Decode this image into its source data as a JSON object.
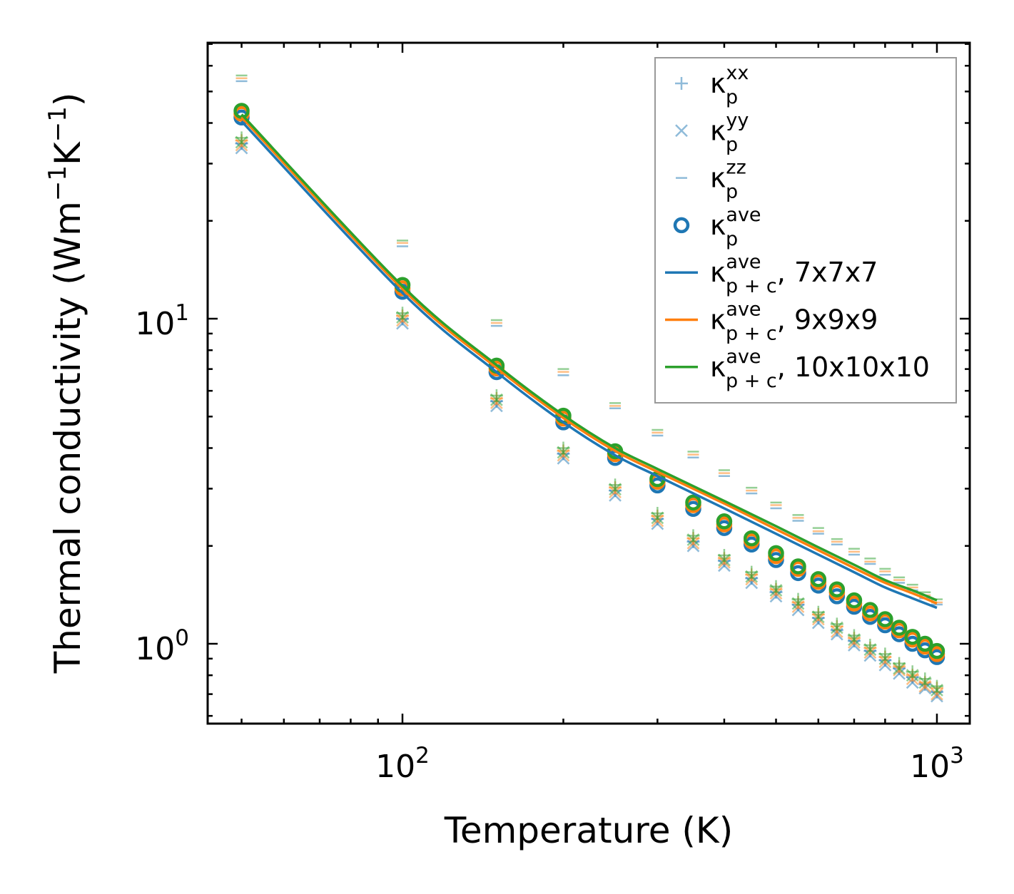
{
  "chart_data": {
    "type": "scatter",
    "title": "",
    "xlabel": "Temperature (K)",
    "ylabel_parts": {
      "pre": "Thermal conductivity (Wm",
      "sup1": "−1",
      "mid": "K",
      "sup2": "−1",
      "post": ")"
    },
    "xscale": "log",
    "yscale": "log",
    "xlim": [
      43.2,
      1152
    ],
    "ylim": [
      0.568,
      70.6
    ],
    "xticks": [
      {
        "value": 100,
        "base": "10",
        "exp": "2"
      },
      {
        "value": 1000,
        "base": "10",
        "exp": "3"
      }
    ],
    "yticks": [
      {
        "value": 1,
        "base": "10",
        "exp": "0"
      },
      {
        "value": 10,
        "base": "10",
        "exp": "1"
      }
    ],
    "legend_position": "top-right",
    "colors": {
      "7x7x7": "#1f77b4",
      "9x9x9": "#ff7f0e",
      "10x10x10": "#2ca02c"
    },
    "legend": [
      {
        "marker": "plus",
        "color": "#1f77b4",
        "sym": "κ",
        "sup": "xx",
        "sub": "p",
        "suffix": ""
      },
      {
        "marker": "x",
        "color": "#1f77b4",
        "sym": "κ",
        "sup": "yy",
        "sub": "p",
        "suffix": ""
      },
      {
        "marker": "hline",
        "color": "#1f77b4",
        "sym": "κ",
        "sup": "zz",
        "sub": "p",
        "suffix": ""
      },
      {
        "marker": "circle",
        "color": "#1f77b4",
        "sym": "κ",
        "sup": "ave",
        "sub": "p",
        "suffix": ""
      },
      {
        "marker": "line",
        "color": "#1f77b4",
        "sym": "κ",
        "sup": "ave",
        "sub": "p + c",
        "suffix": ", 7x7x7"
      },
      {
        "marker": "line",
        "color": "#ff7f0e",
        "sym": "κ",
        "sup": "ave",
        "sub": "p + c",
        "suffix": ", 9x9x9"
      },
      {
        "marker": "line",
        "color": "#2ca02c",
        "sym": "κ",
        "sup": "ave",
        "sub": "p + c",
        "suffix": ", 10x10x10"
      }
    ],
    "T": [
      50,
      100,
      150,
      200,
      250,
      300,
      350,
      400,
      450,
      500,
      550,
      600,
      650,
      700,
      750,
      800,
      850,
      900,
      950,
      1000
    ],
    "grids": [
      {
        "name": "7x7x7",
        "color": "#1f77b4",
        "xx": [
          34.6,
          9.98,
          5.57,
          3.84,
          2.96,
          2.42,
          2.06,
          1.8,
          1.59,
          1.44,
          1.32,
          1.2,
          1.1,
          1.02,
          0.95,
          0.89,
          0.84,
          0.79,
          0.75,
          0.71
        ],
        "yy": [
          33.5,
          9.67,
          5.39,
          3.72,
          2.86,
          2.34,
          2.0,
          1.74,
          1.54,
          1.4,
          1.27,
          1.16,
          1.07,
          0.99,
          0.92,
          0.86,
          0.81,
          0.76,
          0.73,
          0.69
        ],
        "zz": [
          53.8,
          16.7,
          9.5,
          6.7,
          5.3,
          4.37,
          3.74,
          3.28,
          2.9,
          2.61,
          2.39,
          2.18,
          2.02,
          1.88,
          1.76,
          1.63,
          1.54,
          1.46,
          1.38,
          1.32
        ],
        "ave": [
          41.6,
          12.1,
          6.85,
          4.8,
          3.73,
          3.07,
          2.6,
          2.27,
          2.02,
          1.81,
          1.65,
          1.51,
          1.4,
          1.3,
          1.21,
          1.14,
          1.07,
          1.0,
          0.955,
          0.91
        ],
        "line_T": [
          50,
          100,
          150,
          200,
          250,
          300,
          400,
          500,
          600,
          700,
          800,
          900,
          1000
        ],
        "line": [
          40.5,
          12.0,
          6.85,
          4.8,
          3.8,
          3.28,
          2.61,
          2.18,
          1.88,
          1.66,
          1.49,
          1.38,
          1.29
        ]
      },
      {
        "name": "9x9x9",
        "color": "#ff7f0e",
        "xx": [
          35.3,
          10.2,
          5.68,
          3.92,
          3.02,
          2.47,
          2.11,
          1.83,
          1.63,
          1.47,
          1.34,
          1.23,
          1.13,
          1.04,
          0.97,
          0.91,
          0.85,
          0.8,
          0.76,
          0.73
        ],
        "yy": [
          34.2,
          9.88,
          5.51,
          3.8,
          2.93,
          2.39,
          2.04,
          1.78,
          1.58,
          1.43,
          1.3,
          1.19,
          1.09,
          1.01,
          0.94,
          0.88,
          0.83,
          0.78,
          0.74,
          0.7
        ],
        "zz": [
          54.9,
          17.1,
          9.7,
          6.86,
          5.39,
          4.46,
          3.82,
          3.35,
          2.96,
          2.67,
          2.44,
          2.22,
          2.06,
          1.92,
          1.79,
          1.67,
          1.57,
          1.49,
          1.41,
          1.34
        ],
        "ave": [
          42.7,
          12.4,
          7.03,
          4.93,
          3.83,
          3.15,
          2.67,
          2.33,
          2.07,
          1.86,
          1.7,
          1.55,
          1.44,
          1.33,
          1.24,
          1.17,
          1.1,
          1.03,
          0.98,
          0.93
        ],
        "line_T": [
          50,
          100,
          150,
          200,
          250,
          300,
          400,
          500,
          600,
          700,
          800,
          900,
          1000
        ],
        "line": [
          41.7,
          12.35,
          7.06,
          4.95,
          3.92,
          3.38,
          2.7,
          2.25,
          1.94,
          1.71,
          1.54,
          1.43,
          1.33
        ]
      },
      {
        "name": "10x10x10",
        "color": "#2ca02c",
        "xx": [
          36,
          10.4,
          5.8,
          4.0,
          3.08,
          2.52,
          2.15,
          1.87,
          1.66,
          1.5,
          1.37,
          1.25,
          1.15,
          1.06,
          0.99,
          0.93,
          0.87,
          0.82,
          0.78,
          0.74
        ],
        "yy": [
          34.9,
          10.1,
          5.63,
          3.88,
          2.99,
          2.44,
          2.09,
          1.81,
          1.61,
          1.46,
          1.33,
          1.21,
          1.12,
          1.03,
          0.96,
          0.9,
          0.84,
          0.8,
          0.76,
          0.72
        ],
        "zz": [
          56,
          17.4,
          9.9,
          7.0,
          5.5,
          4.55,
          3.9,
          3.42,
          3.02,
          2.72,
          2.49,
          2.27,
          2.1,
          1.96,
          1.83,
          1.7,
          1.6,
          1.52,
          1.44,
          1.37
        ],
        "ave": [
          43.6,
          12.7,
          7.17,
          5.03,
          3.91,
          3.21,
          2.72,
          2.38,
          2.11,
          1.9,
          1.73,
          1.58,
          1.47,
          1.36,
          1.27,
          1.19,
          1.12,
          1.05,
          1.0,
          0.95
        ],
        "line_T": [
          50,
          100,
          150,
          200,
          250,
          300,
          400,
          500,
          600,
          700,
          800,
          900,
          1000
        ],
        "line": [
          42.5,
          12.6,
          7.2,
          5.05,
          4.0,
          3.45,
          2.75,
          2.3,
          1.98,
          1.75,
          1.57,
          1.46,
          1.36
        ]
      }
    ]
  }
}
